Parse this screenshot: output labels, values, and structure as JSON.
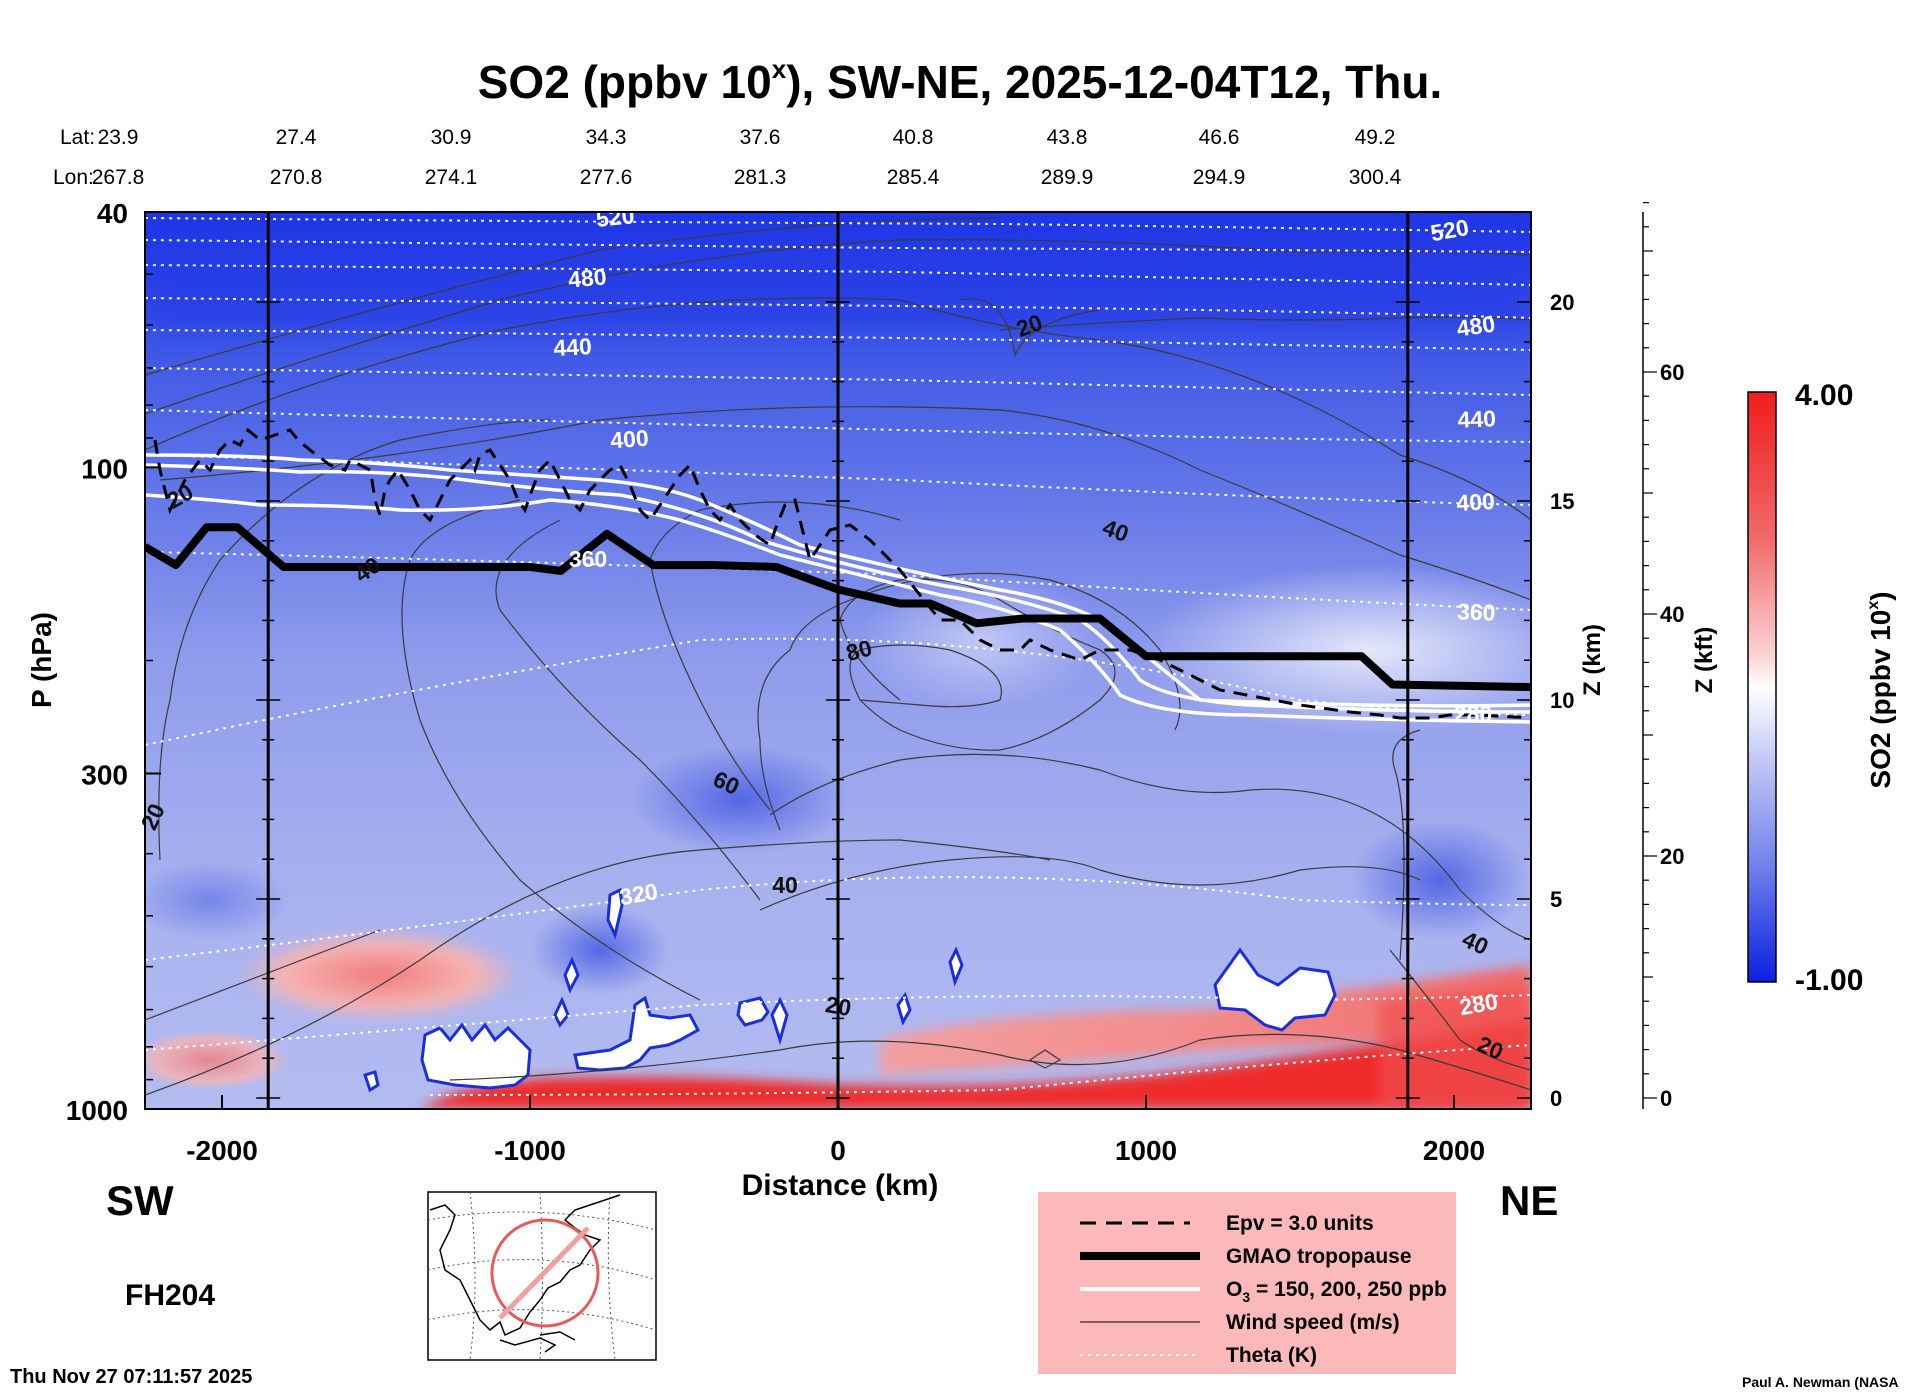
{
  "chart_data": {
    "type": "heatmap",
    "title_main": "SO2 (ppbv 10",
    "title_exp": "x",
    "title_tail": "), SW-NE, 2025-12-04T12, Thu.",
    "xlabel": "Distance (km)",
    "ylabel": "P (hPa)",
    "xlim": [
      -2250,
      2250
    ],
    "x_ticks": [
      -2000,
      -1000,
      0,
      1000,
      2000
    ],
    "x_tick_labels": [
      "-2000",
      "-1000",
      "0",
      "1000",
      "2000"
    ],
    "pressure_ticks": [
      40,
      100,
      300,
      1000
    ],
    "pressure_tick_labels": [
      "40",
      "100",
      "300",
      "1000"
    ],
    "z_km_label": "Z (km)",
    "z_km_ticks": [
      0,
      5,
      10,
      15,
      20
    ],
    "z_km_tick_labels": [
      "0",
      "5",
      "10",
      "15",
      "20"
    ],
    "z_kft_label": "Z (kft)",
    "z_kft_ticks": [
      0,
      20,
      40,
      60
    ],
    "z_kft_tick_labels": [
      "0",
      "20",
      "40",
      "60"
    ],
    "lat_label": "Lat:",
    "lon_label": "Lon:",
    "lat_values": [
      "23.9",
      "27.4",
      "30.9",
      "34.3",
      "37.6",
      "40.8",
      "43.8",
      "46.6",
      "49.2"
    ],
    "lon_values": [
      "267.8",
      "270.8",
      "274.1",
      "277.6",
      "281.3",
      "285.4",
      "289.9",
      "294.9",
      "300.4"
    ],
    "vertical_lines_km": [
      -1850,
      0,
      1850
    ],
    "colorbar": {
      "label_main": "SO2 (ppbv 10",
      "label_exp": "x",
      "label_tail": ")",
      "max_label": "4.00",
      "min_label": "-1.00",
      "vmin": -1.0,
      "vmax": 4.0,
      "colors": [
        "#0a1fe0",
        "#ffffff",
        "#ee1c1c"
      ]
    },
    "gmao_tropopause_hpa": [
      [
        -2250,
        133
      ],
      [
        -2150,
        142
      ],
      [
        -2050,
        124
      ],
      [
        -1950,
        124
      ],
      [
        -1800,
        143
      ],
      [
        -1000,
        143
      ],
      [
        -900,
        145
      ],
      [
        -750,
        127
      ],
      [
        -600,
        142
      ],
      [
        -400,
        142
      ],
      [
        -200,
        143
      ],
      [
        0,
        155
      ],
      [
        200,
        163
      ],
      [
        300,
        163
      ],
      [
        450,
        175
      ],
      [
        600,
        172
      ],
      [
        850,
        172
      ],
      [
        1000,
        197
      ],
      [
        1700,
        197
      ],
      [
        1800,
        218
      ],
      [
        2250,
        220
      ]
    ],
    "theta_isentropes_K": [
      "520",
      "480",
      "440",
      "400",
      "360",
      "320",
      "280"
    ],
    "wind_speed_labels_ms": [
      "20",
      "40",
      "60",
      "80"
    ],
    "o3_contours_ppb": [
      150,
      200,
      250
    ],
    "epv_units": 3.0
  },
  "contour_labels": {
    "theta": [
      {
        "text": "520"
      },
      {
        "text": "520"
      },
      {
        "text": "480"
      },
      {
        "text": "480"
      },
      {
        "text": "440"
      },
      {
        "text": "440"
      },
      {
        "text": "400"
      },
      {
        "text": "400"
      },
      {
        "text": "360"
      },
      {
        "text": "360"
      },
      {
        "text": "280"
      },
      {
        "text": "320"
      },
      {
        "text": "280"
      }
    ],
    "wind": [
      {
        "text": "20"
      },
      {
        "text": "20"
      },
      {
        "text": "40"
      },
      {
        "text": "40"
      },
      {
        "text": "80"
      },
      {
        "text": "60"
      },
      {
        "text": "40"
      },
      {
        "text": "20"
      },
      {
        "text": "20"
      },
      {
        "text": "20"
      },
      {
        "text": "40"
      }
    ]
  },
  "annotations": {
    "sw": "SW",
    "ne": "NE",
    "forecast_hour": "FH204",
    "timestamp": "Thu Nov 27 07:11:57 2025",
    "credit": "Paul A. Newman (NASA"
  },
  "legend": {
    "items": [
      {
        "label": "Epv = 3.0 units"
      },
      {
        "label": "GMAO tropopause"
      },
      {
        "label_main": "O",
        "label_sub": "3",
        "label_tail": " = 150, 200, 250 ppb"
      },
      {
        "label": "Wind speed (m/s)"
      },
      {
        "label": "Theta (K)"
      }
    ],
    "background": "#fcb9b9"
  },
  "colors": {
    "legend_bg": "#fcb9b9",
    "inset_circle": "#e85a5a"
  }
}
